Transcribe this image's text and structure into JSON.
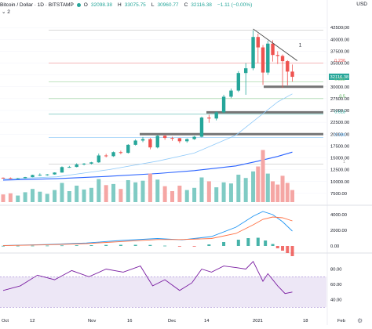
{
  "header": {
    "symbol": "Bitcoin / Dollar · 1D · BITSTAMP",
    "ohlc": [
      {
        "label": "O",
        "value": "32098.38"
      },
      {
        "label": "H",
        "value": "33075.75"
      },
      {
        "label": "L",
        "value": "30960.77"
      },
      {
        "label": "C",
        "value": "32116.38"
      }
    ],
    "change": "−1.11 (−0.00%)",
    "indicator_toggle": "2",
    "currency": "USD"
  },
  "colors": {
    "up": "#26a69a",
    "down": "#ef5350",
    "ma_fast": "#90caf9",
    "ma_slow": "#2962ff",
    "macd": "#2196f3",
    "signal": "#ff7043",
    "rsi": "#7b1fa2",
    "rsi_band": "#ede7f6",
    "fib": "#3f9f3f",
    "support": "#4b6a4b",
    "text": "#131722"
  },
  "price_axis": {
    "ticks": [
      "42500.00",
      "40000.00",
      "37500.00",
      "35000.00",
      "32500.00",
      "30000.00",
      "27500.00",
      "25000.00",
      "22500.00",
      "20000.00",
      "17500.00",
      "15000.00",
      "12500.00",
      "10000.00",
      "7500.00"
    ],
    "last_price": "32116.38"
  },
  "macd_axis": {
    "ticks": [
      "4000.00",
      "2000.00",
      "0.00"
    ]
  },
  "rsi_axis": {
    "ticks": [
      "80.00",
      "60.00",
      "40.00"
    ]
  },
  "time_axis": {
    "ticks": [
      "Oct",
      "12",
      "Nov",
      "16",
      "Dec",
      "14",
      "2021",
      "18",
      "Feb"
    ]
  },
  "fib_levels": [
    {
      "ratio": "0",
      "price": 41900
    },
    {
      "ratio": "0.236",
      "price": 35000
    },
    {
      "ratio": "0.382",
      "price": 31000
    },
    {
      "ratio": "0.5",
      "price": 27500
    },
    {
      "ratio": "0.618",
      "price": 24200
    },
    {
      "ratio": "0.786",
      "price": 19300
    },
    {
      "ratio": "1",
      "price": 13700
    }
  ],
  "trendline_label": "1",
  "chart_data": {
    "type": "candlestick",
    "x_range": [
      "2020-09-28",
      "2021-02-05"
    ],
    "y_range": [
      5000,
      45000
    ],
    "candles": [
      [
        "2020-09-28",
        10800,
        10870,
        10660,
        10720
      ],
      [
        "2020-10-01",
        10720,
        10860,
        10570,
        10620
      ],
      [
        "2020-10-04",
        10620,
        10780,
        10540,
        10700
      ],
      [
        "2020-10-07",
        10700,
        10980,
        10650,
        10930
      ],
      [
        "2020-10-10",
        10930,
        11450,
        10900,
        11380
      ],
      [
        "2020-10-13",
        11380,
        11720,
        11180,
        11420
      ],
      [
        "2020-10-16",
        11420,
        11580,
        11220,
        11500
      ],
      [
        "2020-10-19",
        11500,
        11950,
        11450,
        11900
      ],
      [
        "2020-10-22",
        11900,
        13200,
        11850,
        13050
      ],
      [
        "2020-10-25",
        13050,
        13300,
        12900,
        13080
      ],
      [
        "2020-10-28",
        13080,
        13850,
        13000,
        13600
      ],
      [
        "2020-10-31",
        13600,
        13900,
        13400,
        13780
      ],
      [
        "2020-11-03",
        13780,
        14150,
        13600,
        14050
      ],
      [
        "2020-11-06",
        14050,
        15900,
        13950,
        15500
      ],
      [
        "2020-11-09",
        15500,
        15850,
        15100,
        15350
      ],
      [
        "2020-11-12",
        15350,
        16350,
        15200,
        16200
      ],
      [
        "2020-11-15",
        16200,
        16500,
        15750,
        16050
      ],
      [
        "2020-11-18",
        16050,
        17900,
        15900,
        17750
      ],
      [
        "2020-11-21",
        17750,
        18900,
        17600,
        18650
      ],
      [
        "2020-11-24",
        18650,
        19400,
        18300,
        18950
      ],
      [
        "2020-11-27",
        18950,
        19200,
        16800,
        17200
      ],
      [
        "2020-11-30",
        17200,
        19800,
        17000,
        19650
      ],
      [
        "2020-12-03",
        19650,
        19850,
        18800,
        19200
      ],
      [
        "2020-12-06",
        19200,
        19450,
        18600,
        19150
      ],
      [
        "2020-12-09",
        19150,
        19200,
        18100,
        18500
      ],
      [
        "2020-12-12",
        18500,
        19100,
        18200,
        18950
      ],
      [
        "2020-12-15",
        18950,
        19600,
        18800,
        19450
      ],
      [
        "2020-12-18",
        19450,
        23700,
        19300,
        23500
      ],
      [
        "2020-12-21",
        23500,
        24100,
        22400,
        23300
      ],
      [
        "2020-12-24",
        23300,
        24800,
        22900,
        24600
      ],
      [
        "2020-12-27",
        24600,
        28300,
        24400,
        27900
      ],
      [
        "2020-12-30",
        27900,
        29600,
        27600,
        29200
      ],
      [
        "2021-01-02",
        29200,
        33300,
        28900,
        32900
      ],
      [
        "2021-01-05",
        32900,
        35000,
        28300,
        33900
      ],
      [
        "2021-01-08",
        33900,
        41900,
        33500,
        40500
      ],
      [
        "2021-01-10",
        40500,
        41200,
        35000,
        38300
      ],
      [
        "2021-01-12",
        38300,
        38800,
        30400,
        33000
      ],
      [
        "2021-01-14",
        33000,
        39700,
        32500,
        39100
      ],
      [
        "2021-01-16",
        39100,
        39800,
        35300,
        36700
      ],
      [
        "2021-01-18",
        36700,
        37500,
        34800,
        36500
      ],
      [
        "2021-01-20",
        36500,
        36800,
        29800,
        35400
      ],
      [
        "2021-01-22",
        35400,
        35600,
        30300,
        33200
      ],
      [
        "2021-01-24",
        33200,
        34700,
        31100,
        32100
      ]
    ],
    "volume": [
      [
        "2020-09-28",
        1.4
      ],
      [
        "2020-10-01",
        1.6
      ],
      [
        "2020-10-04",
        1.2
      ],
      [
        "2020-10-07",
        1.8
      ],
      [
        "2020-10-10",
        2.4
      ],
      [
        "2020-10-13",
        1.9
      ],
      [
        "2020-10-16",
        1.5
      ],
      [
        "2020-10-19",
        2.2
      ],
      [
        "2020-10-22",
        3.5
      ],
      [
        "2020-10-25",
        2.0
      ],
      [
        "2020-10-28",
        3.0
      ],
      [
        "2020-10-31",
        2.3
      ],
      [
        "2020-11-03",
        2.6
      ],
      [
        "2020-11-06",
        4.2
      ],
      [
        "2020-11-09",
        3.1
      ],
      [
        "2020-11-12",
        3.3
      ],
      [
        "2020-11-15",
        2.4
      ],
      [
        "2020-11-18",
        4.0
      ],
      [
        "2020-11-21",
        3.6
      ],
      [
        "2020-11-24",
        3.9
      ],
      [
        "2020-11-27",
        5.2
      ],
      [
        "2020-11-30",
        4.1
      ],
      [
        "2020-12-03",
        2.9
      ],
      [
        "2020-12-06",
        2.0
      ],
      [
        "2020-12-09",
        3.0
      ],
      [
        "2020-12-12",
        2.2
      ],
      [
        "2020-12-15",
        2.6
      ],
      [
        "2020-12-18",
        4.5
      ],
      [
        "2020-12-21",
        3.8
      ],
      [
        "2020-12-24",
        2.7
      ],
      [
        "2020-12-27",
        3.6
      ],
      [
        "2020-12-30",
        3.4
      ],
      [
        "2021-01-02",
        5.0
      ],
      [
        "2021-01-05",
        4.4
      ],
      [
        "2021-01-08",
        5.6
      ],
      [
        "2021-01-10",
        6.5
      ],
      [
        "2021-01-12",
        9.5
      ],
      [
        "2021-01-14",
        5.2
      ],
      [
        "2021-01-16",
        3.8
      ],
      [
        "2021-01-18",
        3.2
      ],
      [
        "2021-01-20",
        4.8
      ],
      [
        "2021-01-22",
        3.5
      ],
      [
        "2021-01-24",
        2.2
      ]
    ],
    "ma_fast": [
      [
        "2020-09-28",
        10500
      ],
      [
        "2020-10-20",
        11000
      ],
      [
        "2020-11-10",
        12500
      ],
      [
        "2020-11-30",
        14300
      ],
      [
        "2020-12-15",
        16000
      ],
      [
        "2021-01-01",
        19800
      ],
      [
        "2021-01-10",
        23500
      ],
      [
        "2021-01-18",
        26800
      ],
      [
        "2021-01-24",
        28500
      ]
    ],
    "ma_slow": [
      [
        "2020-09-28",
        10300
      ],
      [
        "2020-10-20",
        10600
      ],
      [
        "2020-11-10",
        11100
      ],
      [
        "2020-11-30",
        11700
      ],
      [
        "2020-12-15",
        12300
      ],
      [
        "2021-01-01",
        13300
      ],
      [
        "2021-01-10",
        14300
      ],
      [
        "2021-01-18",
        15300
      ],
      [
        "2021-01-24",
        16200
      ]
    ],
    "macd": {
      "y_range": [
        -800,
        5200
      ],
      "macd_line": [
        [
          "2020-09-28",
          60
        ],
        [
          "2020-10-15",
          180
        ],
        [
          "2020-11-01",
          380
        ],
        [
          "2020-11-15",
          700
        ],
        [
          "2020-11-30",
          950
        ],
        [
          "2020-12-10",
          780
        ],
        [
          "2020-12-22",
          1200
        ],
        [
          "2021-01-01",
          2400
        ],
        [
          "2021-01-08",
          3800
        ],
        [
          "2021-01-12",
          4400
        ],
        [
          "2021-01-16",
          4000
        ],
        [
          "2021-01-20",
          3100
        ],
        [
          "2021-01-24",
          1900
        ]
      ],
      "signal_line": [
        [
          "2020-09-28",
          40
        ],
        [
          "2020-10-15",
          140
        ],
        [
          "2020-11-01",
          300
        ],
        [
          "2020-11-15",
          560
        ],
        [
          "2020-11-30",
          820
        ],
        [
          "2020-12-10",
          820
        ],
        [
          "2020-12-22",
          950
        ],
        [
          "2021-01-01",
          1600
        ],
        [
          "2021-01-08",
          2700
        ],
        [
          "2021-01-12",
          3400
        ],
        [
          "2021-01-16",
          3700
        ],
        [
          "2021-01-20",
          3600
        ],
        [
          "2021-01-24",
          3200
        ]
      ],
      "histogram": [
        [
          "2020-09-28",
          20
        ],
        [
          "2020-10-04",
          30
        ],
        [
          "2020-10-10",
          40
        ],
        [
          "2020-10-16",
          50
        ],
        [
          "2020-10-22",
          70
        ],
        [
          "2020-10-28",
          90
        ],
        [
          "2020-11-03",
          100
        ],
        [
          "2020-11-09",
          130
        ],
        [
          "2020-11-15",
          150
        ],
        [
          "2020-11-21",
          150
        ],
        [
          "2020-11-27",
          130
        ],
        [
          "2020-12-03",
          40
        ],
        [
          "2020-12-09",
          -60
        ],
        [
          "2020-12-15",
          -20
        ],
        [
          "2020-12-21",
          200
        ],
        [
          "2020-12-27",
          500
        ],
        [
          "2021-01-02",
          800
        ],
        [
          "2021-01-06",
          1000
        ],
        [
          "2021-01-10",
          1050
        ],
        [
          "2021-01-13",
          700
        ],
        [
          "2021-01-16",
          250
        ],
        [
          "2021-01-18",
          -300
        ],
        [
          "2021-01-20",
          -600
        ],
        [
          "2021-01-22",
          -900
        ],
        [
          "2021-01-24",
          -1300
        ]
      ]
    },
    "rsi": {
      "y_range": [
        20,
        100
      ],
      "band": [
        30,
        70
      ],
      "values": [
        [
          "2020-09-28",
          52
        ],
        [
          "2020-10-05",
          58
        ],
        [
          "2020-10-12",
          72
        ],
        [
          "2020-10-19",
          66
        ],
        [
          "2020-10-26",
          78
        ],
        [
          "2020-11-02",
          70
        ],
        [
          "2020-11-09",
          80
        ],
        [
          "2020-11-16",
          76
        ],
        [
          "2020-11-23",
          84
        ],
        [
          "2020-11-28",
          58
        ],
        [
          "2020-12-03",
          66
        ],
        [
          "2020-12-09",
          52
        ],
        [
          "2020-12-14",
          62
        ],
        [
          "2020-12-18",
          80
        ],
        [
          "2020-12-22",
          76
        ],
        [
          "2020-12-27",
          84
        ],
        [
          "2021-01-01",
          82
        ],
        [
          "2021-01-05",
          80
        ],
        [
          "2021-01-08",
          90
        ],
        [
          "2021-01-12",
          64
        ],
        [
          "2021-01-14",
          74
        ],
        [
          "2021-01-18",
          58
        ],
        [
          "2021-01-21",
          48
        ],
        [
          "2021-01-24",
          50
        ]
      ]
    }
  }
}
